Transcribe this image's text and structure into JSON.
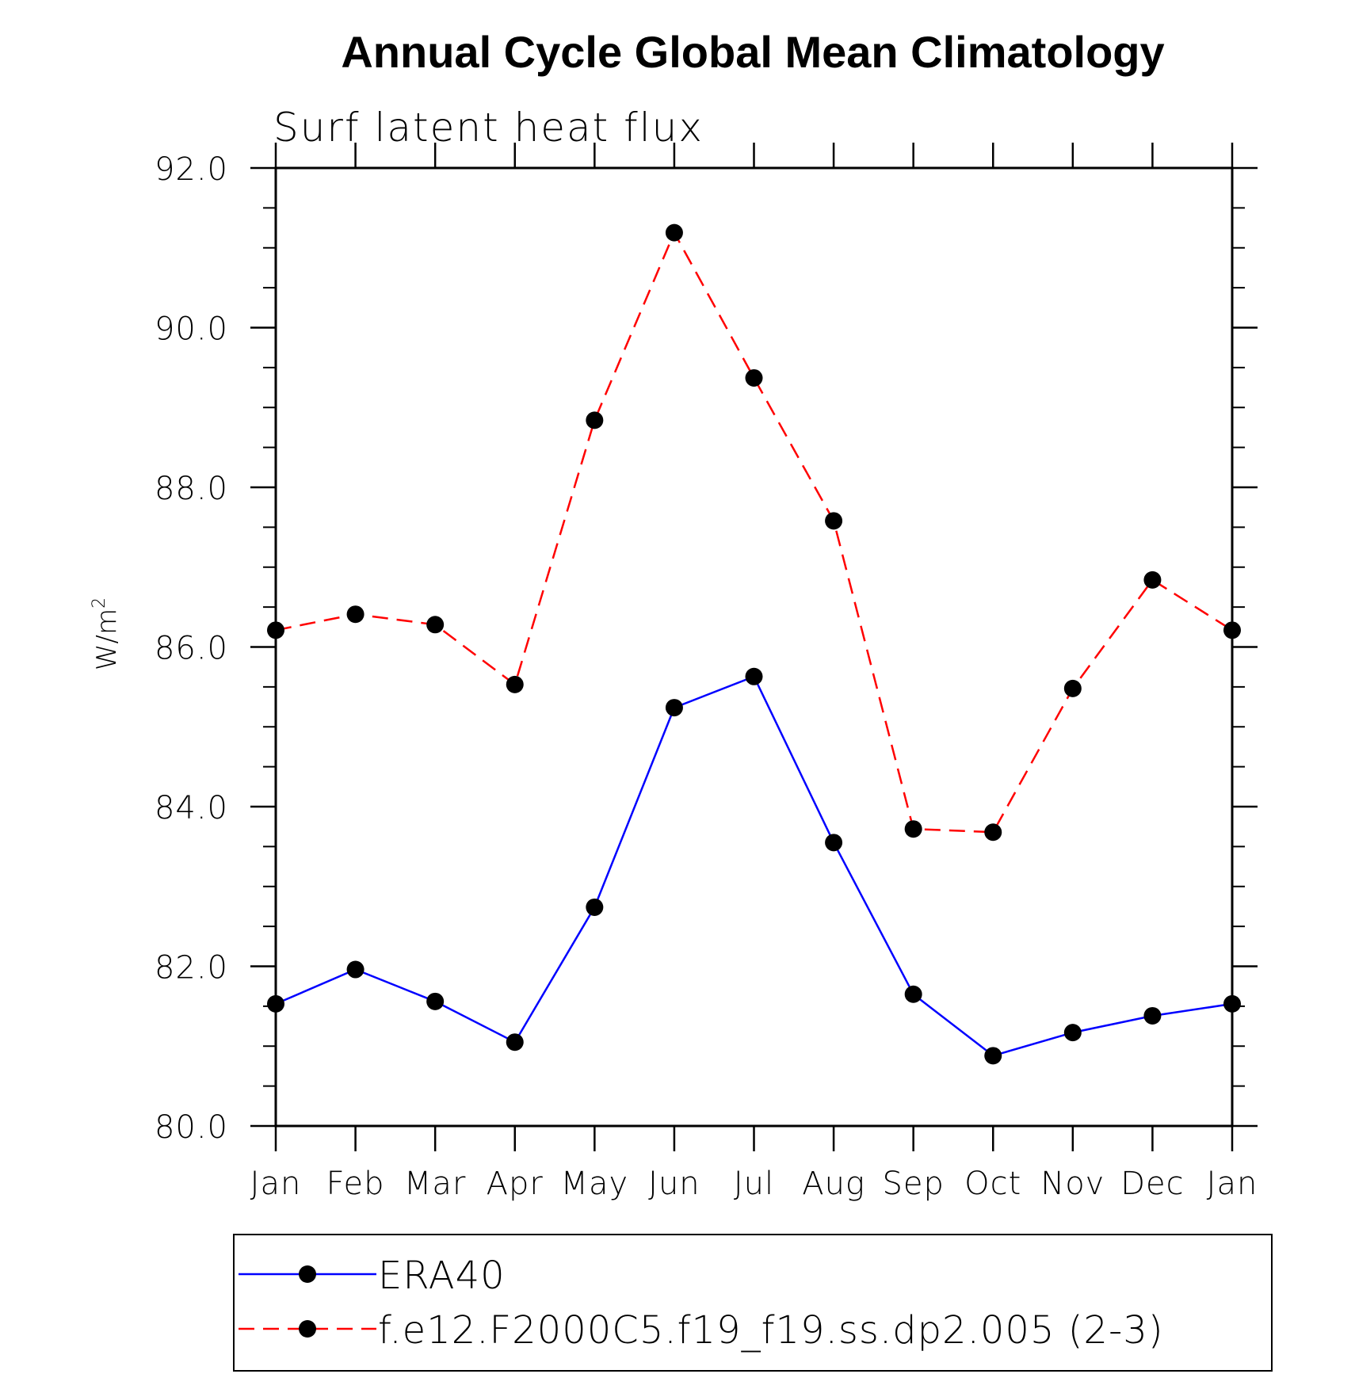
{
  "chart_data": {
    "type": "line",
    "title": "Annual Cycle Global Mean Climatology",
    "subtitle": "Surf latent heat flux",
    "ylabel": "W/m",
    "ylabel_sup": "2",
    "xlabel": "",
    "categories": [
      "Jan",
      "Feb",
      "Mar",
      "Apr",
      "May",
      "Jun",
      "Jul",
      "Aug",
      "Sep",
      "Oct",
      "Nov",
      "Dec",
      "Jan"
    ],
    "ylim": [
      80.0,
      92.0
    ],
    "yticks": [
      "80.0",
      "82.0",
      "84.0",
      "86.0",
      "88.0",
      "90.0",
      "92.0"
    ],
    "grid": false,
    "legend_position": "bottom",
    "series": [
      {
        "name": "ERA40",
        "color": "#0000ff",
        "line_style": "solid",
        "marker": "filled-circle",
        "values": [
          81.53,
          81.96,
          81.56,
          81.05,
          82.74,
          85.24,
          85.63,
          83.55,
          81.65,
          80.88,
          81.17,
          81.38,
          81.53
        ]
      },
      {
        "name": "f.e12.F2000C5.f19_f19.ss.dp2.005 (2-3)",
        "color": "#ff0000",
        "line_style": "dashed",
        "marker": "filled-circle",
        "values": [
          86.21,
          86.41,
          86.28,
          85.53,
          88.84,
          91.19,
          89.37,
          87.58,
          83.72,
          83.68,
          85.48,
          86.84,
          86.21
        ]
      }
    ]
  }
}
